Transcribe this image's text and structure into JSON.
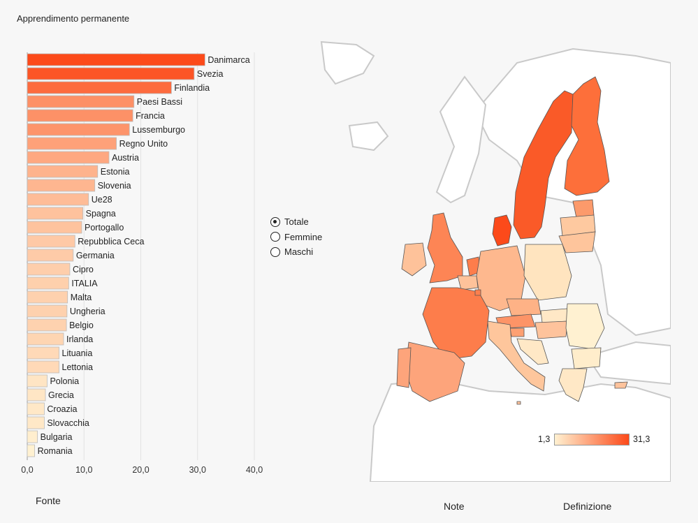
{
  "title": "Apprendimento permanente",
  "chart_data": {
    "type": "bar",
    "orientation": "horizontal",
    "title": "Apprendimento permanente",
    "categories": [
      "Danimarca",
      "Svezia",
      "Finlandia",
      "Paesi Bassi",
      "Francia",
      "Lussemburgo",
      "Regno Unito",
      "Austria",
      "Estonia",
      "Slovenia",
      "Ue28",
      "Spagna",
      "Portogallo",
      "Repubblica Ceca",
      "Germania",
      "Cipro",
      "ITALIA",
      "Malta",
      "Ungheria",
      "Belgio",
      "Irlanda",
      "Lituania",
      "Lettonia",
      "Polonia",
      "Grecia",
      "Croazia",
      "Slovacchia",
      "Bulgaria",
      "Romania"
    ],
    "values": [
      31.3,
      29.4,
      25.4,
      18.8,
      18.6,
      18.0,
      15.7,
      14.4,
      12.4,
      11.9,
      10.8,
      9.8,
      9.6,
      8.4,
      8.1,
      7.5,
      7.3,
      7.1,
      7.0,
      6.9,
      6.4,
      5.6,
      5.6,
      3.5,
      3.2,
      3.0,
      3.0,
      1.8,
      1.3
    ],
    "xlim": [
      0,
      40
    ],
    "ticks": [
      "0,0",
      "10,0",
      "20,0",
      "30,0",
      "40,0"
    ],
    "color_low": "#fff1d1",
    "color_high": "#fc4a1a",
    "grid": true
  },
  "filters": {
    "options": [
      "Totale",
      "Femmine",
      "Maschi"
    ],
    "selected": "Totale"
  },
  "legend": {
    "min": "1,3",
    "max": "31,3"
  },
  "footer": {
    "source": "Fonte",
    "notes": "Note",
    "definition": "Definizione"
  },
  "map_colors": {
    "land": "#ffffff",
    "outline": "#c9c9c9",
    "border": "#555555"
  }
}
